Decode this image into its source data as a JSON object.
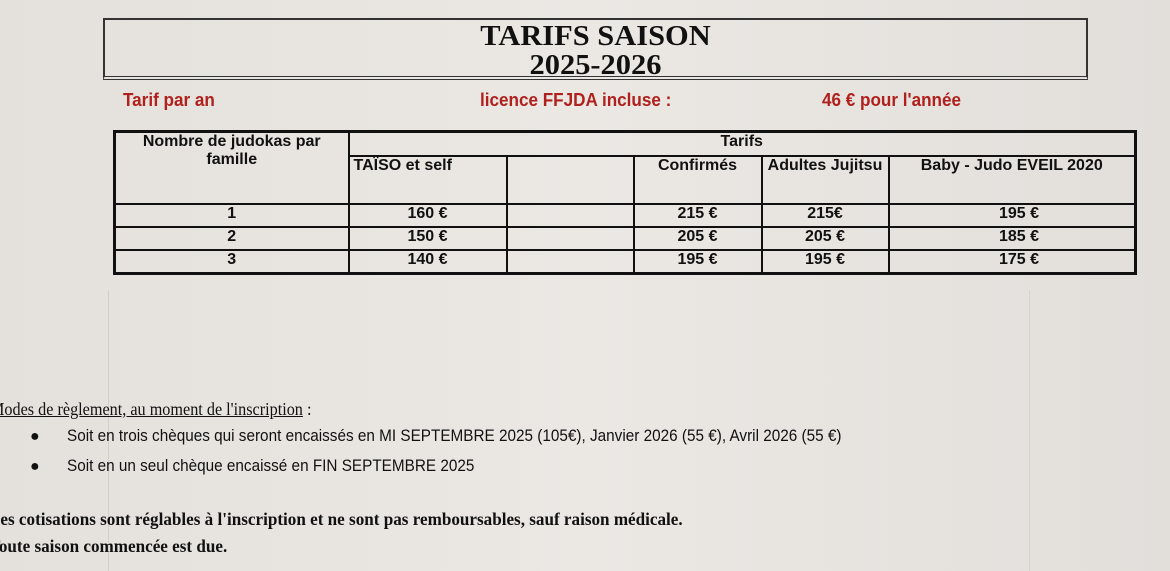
{
  "title": {
    "line1": "TARIFS SAISON",
    "line2": "2025-2026"
  },
  "subheader": {
    "left": "Tarif par an",
    "middle": "licence FFJDA incluse :",
    "right": "46 € pour l'année"
  },
  "table": {
    "row_header": "Nombre de judokas par famille",
    "group_header": "Tarifs",
    "columns": [
      "TAÏSO et self",
      "",
      "Confirmés",
      "Adultes Jujitsu",
      "Baby - Judo EVEIL 2020"
    ],
    "rows": [
      {
        "n": "1",
        "cells": [
          "160 €",
          "",
          "215 €",
          "215€",
          "195 €"
        ]
      },
      {
        "n": "2",
        "cells": [
          "150 €",
          "",
          "205 €",
          "205 €",
          "185 €"
        ]
      },
      {
        "n": "3",
        "cells": [
          "140 €",
          "",
          "195 €",
          "195 €",
          "175 €"
        ]
      }
    ]
  },
  "payment": {
    "heading": "Modes de règlement, au moment de l'inscription",
    "heading_suffix": " :",
    "items": [
      "Soit en trois chèques qui seront encaissés en MI SEPTEMBRE 2025 (105€), Janvier 2026 (55 €), Avril 2026 (55 €)",
      "Soit en un seul chèque encaissé en FIN SEPTEMBRE 2025"
    ]
  },
  "notes": [
    "Les cotisations sont réglables à l'inscription et ne sont pas remboursables, sauf raison médicale.",
    "Toute saison commencée est due."
  ]
}
